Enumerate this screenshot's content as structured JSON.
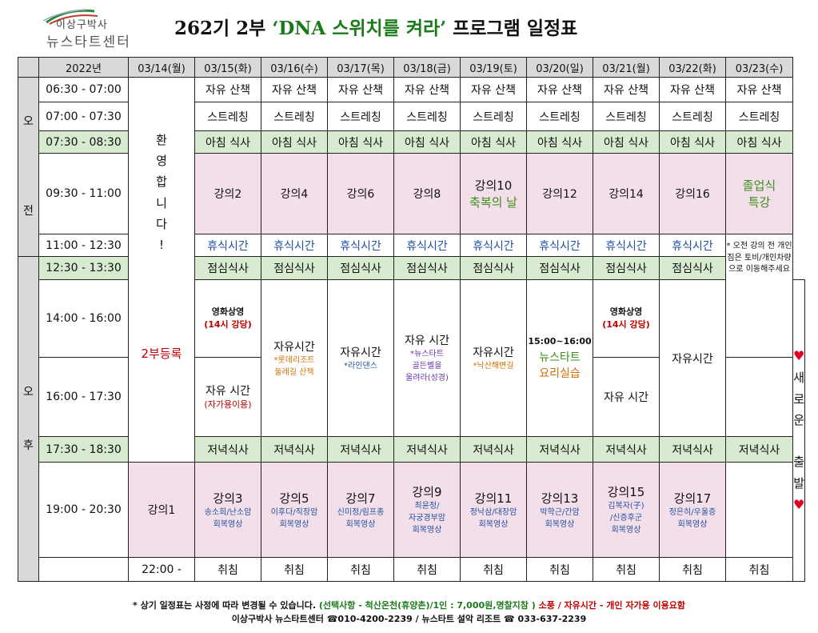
{
  "header": {
    "logo_line1": "이상구박사",
    "logo_line2": "뉴스타트센터",
    "title_pre": "262기 2부 ",
    "title_highlight": "‘DNA 스위치를 켜라’",
    "title_post": " 프로그램 일정표"
  },
  "table": {
    "year": "2022년",
    "dates": [
      "03/14(월)",
      "03/15(화)",
      "03/16(수)",
      "03/17(목)",
      "03/18(금)",
      "03/19(토)",
      "03/20(일)",
      "03/21(월)",
      "03/22(화)",
      "03/23(수)"
    ],
    "am_label": [
      "오",
      "전"
    ],
    "pm_label": [
      "오",
      "후"
    ],
    "times": [
      "06:30 - 07:00",
      "07:00 - 07:30",
      "07:30 - 08:30",
      "09:30 - 11:00",
      "11:00 - 12:30",
      "12:30 - 13:30",
      "14:00 - 16:00",
      "16:00 - 17:30",
      "17:30 - 18:30",
      "19:00 - 20:30",
      "22:00 -"
    ],
    "walk": "자유 산책",
    "stretch": "스트레칭",
    "breakfast": "아침 식사",
    "rest": "휴식시간",
    "lunch": "점심식사",
    "dinner": "저녁식사",
    "sleep": "취침",
    "welcome": [
      "환",
      "영",
      "합",
      "니",
      "다",
      "!"
    ],
    "registration": "2부등록",
    "morning_lectures": [
      "강의2",
      "강의4",
      "강의6",
      "강의8",
      "강의10",
      "강의12",
      "강의14",
      "강의16"
    ],
    "blessing_day": "축복의 날",
    "graduation": [
      "졸업식",
      "특강"
    ],
    "note": "* 오전 강의 전 개인 짐은 토비/개인차량으로 이동해주세요",
    "new_start": {
      "heart": "♥",
      "chars": [
        "새",
        "로",
        "운",
        "출",
        "발"
      ]
    },
    "movie": {
      "title": "영화상영",
      "place": "(14시 강당)"
    },
    "free_time": "자유시간",
    "free_time_spaced": "자유 시간",
    "self_use": "(자가용이용)",
    "d16_free": [
      "*롯데리조트",
      "둘레길 산책"
    ],
    "d17_free": "*라인댄스",
    "d18_free": [
      "*뉴스타트",
      "골든벨을",
      "울려라(성경)"
    ],
    "d19_free": "*낙산해변길",
    "cooking": {
      "time": "15:00~16:00",
      "line1": "뉴스타트",
      "line2": "요리실습"
    },
    "evening": [
      {
        "label": "강의1",
        "lines": []
      },
      {
        "label": "강의3",
        "lines": [
          "송소희/난소암",
          "회복영상"
        ]
      },
      {
        "label": "강의5",
        "lines": [
          "이후다/직장암",
          "회복영상"
        ]
      },
      {
        "label": "강의7",
        "lines": [
          "신미정/림프종",
          "회복영상"
        ]
      },
      {
        "label": "강의9",
        "lines": [
          "최윤정/",
          "자궁경부암",
          "회복영상"
        ]
      },
      {
        "label": "강의11",
        "lines": [
          "정낙삼/대장암",
          "회복영상"
        ]
      },
      {
        "label": "강의13",
        "lines": [
          "박학근/간암",
          "회복영상"
        ]
      },
      {
        "label": "강의15",
        "lines": [
          "김복자(子)",
          "/신증후군",
          "회복영상"
        ]
      },
      {
        "label": "강의17",
        "lines": [
          "정은히/우울증",
          "회복영상"
        ]
      }
    ]
  },
  "footer": {
    "note1": "* 상기 일정표는 사정에 따라 변경될 수 있습니다.",
    "note2": "(선택사항 - 척산온천(휴양촌)/1인 : 7,000원,명찰지참 )",
    "note3": "소풍 / 자유시간 - 개인 자가용 이용요함",
    "contact1": "이상구박사 뉴스타트센터 ☎010-4200-2239 /",
    "contact2": "뉴스타트 설악 리조트 ☎ 033-637-2239"
  }
}
